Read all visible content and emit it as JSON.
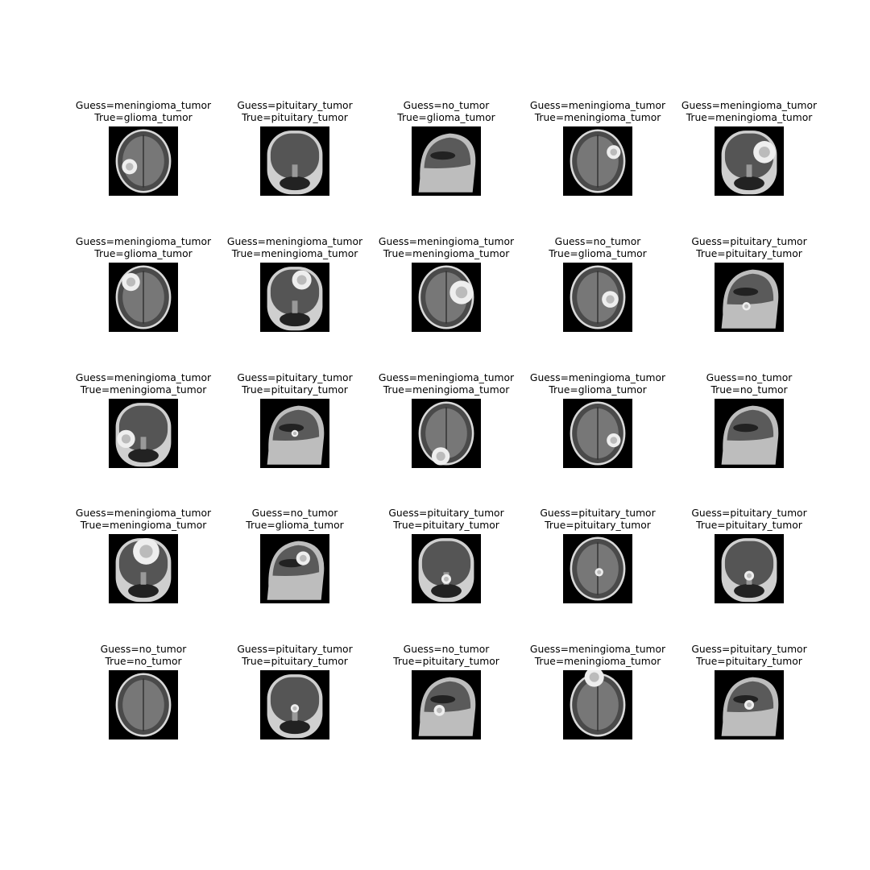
{
  "figure": {
    "images": [
      {
        "guess": "Guess=meningioma_tumor",
        "true": "True=glioma_tumor",
        "view": "axial"
      },
      {
        "guess": "Guess=pituitary_tumor",
        "true": "True=pituitary_tumor",
        "view": "coronal"
      },
      {
        "guess": "Guess=no_tumor",
        "true": "True=glioma_tumor",
        "view": "sagittal"
      },
      {
        "guess": "Guess=meningioma_tumor",
        "true": "True=meningioma_tumor",
        "view": "axial"
      },
      {
        "guess": "Guess=meningioma_tumor",
        "true": "True=meningioma_tumor",
        "view": "coronal"
      },
      {
        "guess": "Guess=meningioma_tumor",
        "true": "True=glioma_tumor",
        "view": "axial"
      },
      {
        "guess": "Guess=meningioma_tumor",
        "true": "True=meningioma_tumor",
        "view": "coronal"
      },
      {
        "guess": "Guess=meningioma_tumor",
        "true": "True=meningioma_tumor",
        "view": "axial"
      },
      {
        "guess": "Guess=no_tumor",
        "true": "True=glioma_tumor",
        "view": "axial"
      },
      {
        "guess": "Guess=pituitary_tumor",
        "true": "True=pituitary_tumor",
        "view": "sagittal"
      },
      {
        "guess": "Guess=meningioma_tumor",
        "true": "True=meningioma_tumor",
        "view": "coronal"
      },
      {
        "guess": "Guess=pituitary_tumor",
        "true": "True=pituitary_tumor",
        "view": "sagittal"
      },
      {
        "guess": "Guess=meningioma_tumor",
        "true": "True=meningioma_tumor",
        "view": "axial"
      },
      {
        "guess": "Guess=meningioma_tumor",
        "true": "True=glioma_tumor",
        "view": "axial"
      },
      {
        "guess": "Guess=no_tumor",
        "true": "True=no_tumor",
        "view": "sagittal"
      },
      {
        "guess": "Guess=meningioma_tumor",
        "true": "True=meningioma_tumor",
        "view": "coronal"
      },
      {
        "guess": "Guess=no_tumor",
        "true": "True=glioma_tumor",
        "view": "sagittal"
      },
      {
        "guess": "Guess=pituitary_tumor",
        "true": "True=pituitary_tumor",
        "view": "coronal"
      },
      {
        "guess": "Guess=pituitary_tumor",
        "true": "True=pituitary_tumor",
        "view": "axial"
      },
      {
        "guess": "Guess=pituitary_tumor",
        "true": "True=pituitary_tumor",
        "view": "coronal"
      },
      {
        "guess": "Guess=no_tumor",
        "true": "True=no_tumor",
        "view": "axial"
      },
      {
        "guess": "Guess=pituitary_tumor",
        "true": "True=pituitary_tumor",
        "view": "coronal"
      },
      {
        "guess": "Guess=no_tumor",
        "true": "True=pituitary_tumor",
        "view": "sagittal"
      },
      {
        "guess": "Guess=meningioma_tumor",
        "true": "True=meningioma_tumor",
        "view": "axial"
      },
      {
        "guess": "Guess=pituitary_tumor",
        "true": "True=pituitary_tumor",
        "view": "sagittal"
      }
    ]
  }
}
